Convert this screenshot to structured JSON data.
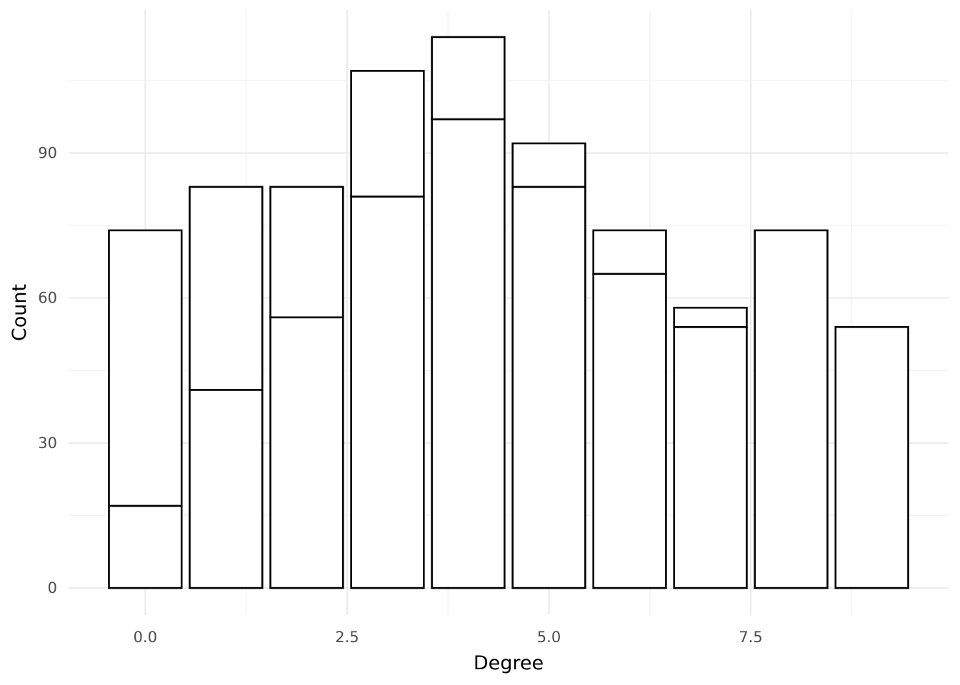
{
  "chart_data": {
    "type": "bar",
    "stacked": true,
    "title": "",
    "xlabel": "Degree",
    "ylabel": "Count",
    "x": [
      0,
      1,
      2,
      3,
      4,
      5,
      6,
      7,
      8,
      9
    ],
    "series": [
      {
        "values": [
          17,
          41,
          56,
          81,
          97,
          83,
          65,
          54,
          74,
          54
        ]
      },
      {
        "values": [
          57,
          42,
          27,
          26,
          17,
          9,
          9,
          4,
          0,
          0
        ]
      }
    ],
    "totals": [
      74,
      83,
      83,
      107,
      114,
      92,
      74,
      58,
      74,
      54
    ],
    "xlim": [
      -0.95,
      9.95
    ],
    "ylim": [
      -5.6,
      119.6
    ],
    "x_ticks": [
      0,
      2.5,
      5,
      7.5
    ],
    "x_tick_labels": [
      "0.0",
      "2.5",
      "5.0",
      "7.5"
    ],
    "y_ticks": [
      0,
      30,
      60,
      90
    ],
    "y_tick_labels": [
      "0",
      "30",
      "60",
      "90"
    ],
    "grid": true,
    "legend": "none",
    "colors": {
      "bar_fill": "#ffffff",
      "bar_outline": "#000000",
      "grid": "#ebebeb"
    }
  }
}
